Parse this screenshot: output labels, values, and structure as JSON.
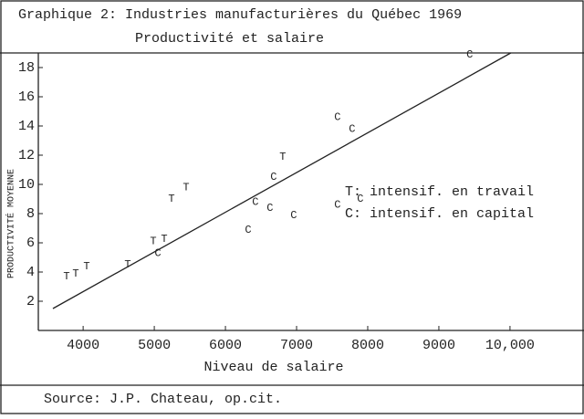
{
  "chart_data": {
    "type": "scatter",
    "title": "Graphique 2: Industries manufacturières du Québec 1969",
    "subtitle": "Productivité et salaire",
    "x_label": "Niveau de salaire",
    "y_label": "PRODUCTIVITÉ MOYENNE",
    "source": "Source: J.P. Chateau, op.cit.",
    "xlim": [
      3370,
      11040
    ],
    "ylim": [
      0,
      19
    ],
    "xticks": [
      4000,
      5000,
      6000,
      7000,
      8000,
      9000,
      {
        "value": 10000,
        "label": "10,000"
      }
    ],
    "yticks": [
      2,
      4,
      6,
      8,
      10,
      12,
      14,
      16,
      18
    ],
    "series": [
      {
        "name": "T: intensif. en travail",
        "marker": "T",
        "color": "#222",
        "x": [
          3767,
          3896,
          4049,
          4626,
          4985,
          5139,
          5242,
          5447,
          6806
        ],
        "values": [
          3.7,
          3.9,
          4.4,
          4.5,
          6.1,
          6.25,
          9.0,
          9.8,
          11.9
        ]
      },
      {
        "name": "C: intensif. en capital",
        "marker": "C",
        "color": "#222",
        "x": [
          5050,
          6319,
          6421,
          6626,
          6960,
          6678,
          7575,
          7780,
          7575,
          9434,
          7896
        ],
        "values": [
          5.3,
          6.9,
          8.8,
          8.4,
          7.9,
          10.5,
          14.6,
          13.8,
          8.6,
          18.9,
          9.0
        ]
      }
    ],
    "trend": {
      "x": [
        3575,
        10011
      ],
      "values": [
        1.5,
        19
      ]
    }
  }
}
